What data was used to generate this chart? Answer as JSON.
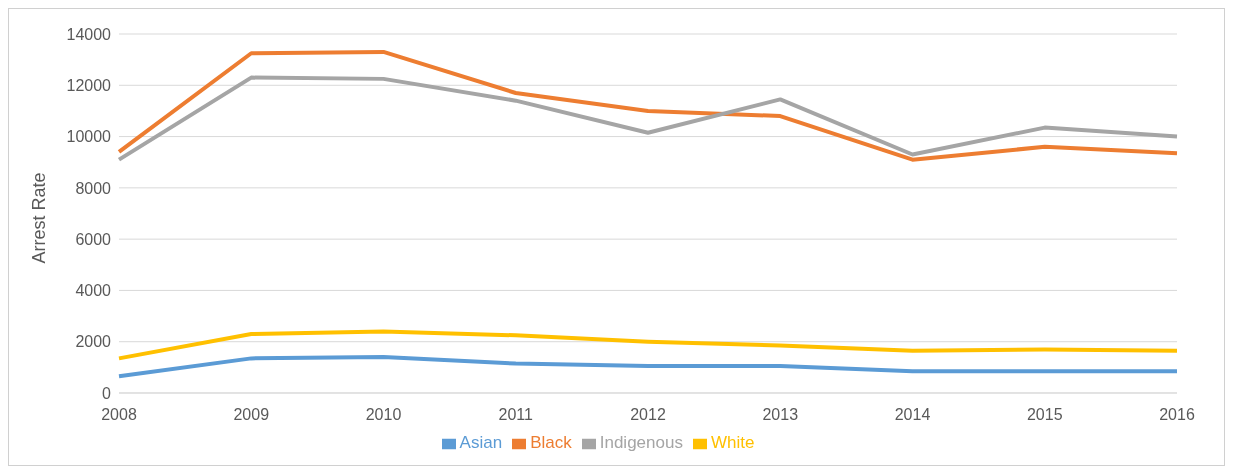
{
  "chart_data": {
    "type": "line",
    "ylabel": "Arrest Rate",
    "categories": [
      "2008",
      "2009",
      "2010",
      "2011",
      "2012",
      "2013",
      "2014",
      "2015",
      "2016"
    ],
    "series": [
      {
        "name": "Asian",
        "color": "#5b9bd5",
        "values": [
          650,
          1350,
          1400,
          1150,
          1050,
          1050,
          850,
          850,
          850
        ]
      },
      {
        "name": "Black",
        "color": "#ed7d31",
        "values": [
          9400,
          13250,
          13300,
          11700,
          11000,
          10800,
          9100,
          9600,
          9350
        ]
      },
      {
        "name": "Indigenous",
        "color": "#a5a5a5",
        "values": [
          9100,
          12300,
          12250,
          11400,
          10150,
          11450,
          9300,
          10350,
          10000
        ]
      },
      {
        "name": "White",
        "color": "#ffc000",
        "values": [
          1350,
          2300,
          2400,
          2250,
          2000,
          1850,
          1650,
          1700,
          1650
        ]
      }
    ],
    "ylim": [
      0,
      14000
    ],
    "yticks": [
      0,
      2000,
      4000,
      6000,
      8000,
      10000,
      12000,
      14000
    ],
    "grid": "y",
    "legend": "bottom",
    "marker": "none",
    "line_style": "solid"
  }
}
